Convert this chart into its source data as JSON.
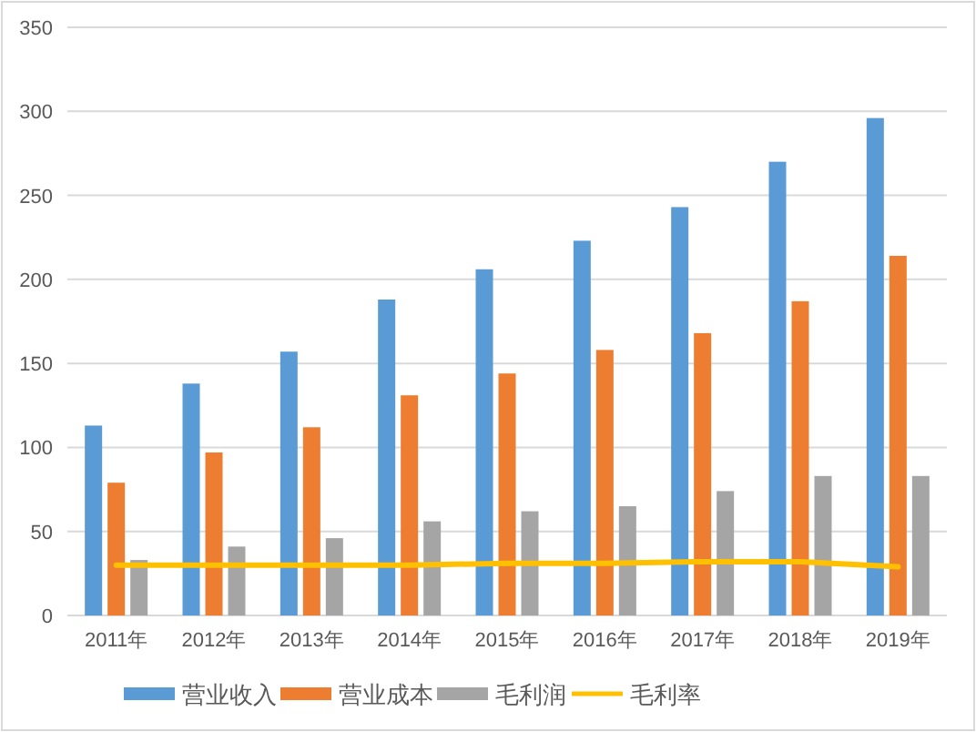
{
  "chart_data": {
    "type": "bar",
    "categories": [
      "2011年",
      "2012年",
      "2013年",
      "2014年",
      "2015年",
      "2016年",
      "2017年",
      "2018年",
      "2019年"
    ],
    "series": [
      {
        "name": "营业收入",
        "color": "#5b9bd5",
        "values": [
          113,
          138,
          157,
          188,
          206,
          223,
          243,
          270,
          296
        ]
      },
      {
        "name": "营业成本",
        "color": "#ed7d31",
        "values": [
          79,
          97,
          112,
          131,
          144,
          158,
          168,
          187,
          214
        ]
      },
      {
        "name": "毛利润",
        "color": "#a5a5a5",
        "values": [
          33,
          41,
          46,
          56,
          62,
          65,
          74,
          83,
          83
        ]
      },
      {
        "name": "毛利率",
        "type": "line",
        "color": "#ffc000",
        "values": [
          30,
          30,
          30,
          30,
          31,
          31,
          32,
          32,
          29
        ]
      }
    ],
    "ylim": [
      0,
      350
    ],
    "yticks": [
      0,
      50,
      100,
      150,
      200,
      250,
      300,
      350
    ],
    "grid": "y",
    "legend": "bottom"
  }
}
